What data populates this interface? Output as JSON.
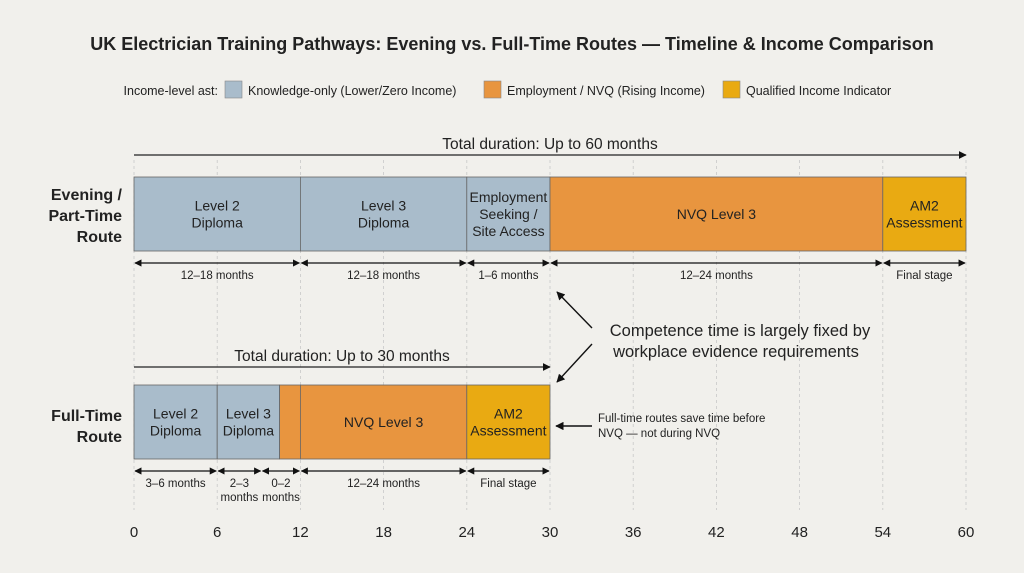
{
  "chart_data": {
    "type": "timeline",
    "title": "UK Electrician Training Pathways: Evening vs. Full-Time Routes — Timeline & Income Comparison",
    "xlabel": "",
    "xlim": [
      0,
      60
    ],
    "x_ticks": [
      "0",
      "6",
      "12",
      "18",
      "24",
      "30",
      "36",
      "42",
      "48",
      "54",
      "60"
    ],
    "grid": true,
    "legend": {
      "placement": "top",
      "title": "Income-level ast:",
      "items": [
        {
          "label": "Knowledge-only (Lower/Zero Income)",
          "color": "#a9bccb"
        },
        {
          "label": "Employment / NVQ (Rising Income)",
          "color": "#e8953f"
        },
        {
          "label": "Qualified Income Indicator",
          "color": "#e9aa12"
        }
      ]
    },
    "routes": [
      {
        "name_lines": [
          "Evening /",
          "Part-Time",
          "Route"
        ],
        "total_label": "Total duration: Up to 60 months",
        "total_months": 60,
        "segments": [
          {
            "label_lines": [
              "Level 2",
              "Diploma"
            ],
            "start": 0,
            "end": 12,
            "category": 0
          },
          {
            "label_lines": [
              "Level 3",
              "Diploma"
            ],
            "start": 12,
            "end": 24,
            "category": 0
          },
          {
            "label_lines": [
              "Employment",
              "Seeking /",
              "Site Access"
            ],
            "start": 24,
            "end": 30,
            "category": 0
          },
          {
            "label_lines": [
              "NVQ Level 3"
            ],
            "start": 30,
            "end": 54,
            "category": 1
          },
          {
            "label_lines": [
              "AM2",
              "Assessment"
            ],
            "start": 54,
            "end": 60,
            "category": 2
          }
        ],
        "durations": [
          {
            "label_lines": [
              "12–18 months"
            ],
            "start": 0,
            "end": 12
          },
          {
            "label_lines": [
              "12–18 months"
            ],
            "start": 12,
            "end": 24
          },
          {
            "label_lines": [
              "1–6 months"
            ],
            "start": 24,
            "end": 30
          },
          {
            "label_lines": [
              "12–24 months"
            ],
            "start": 30,
            "end": 54
          },
          {
            "label_lines": [
              "Final stage"
            ],
            "start": 54,
            "end": 60
          }
        ]
      },
      {
        "name_lines": [
          "Full-Time",
          "Route"
        ],
        "total_label": "Total duration: Up to 30 months",
        "total_months": 30,
        "segments": [
          {
            "label_lines": [
              "Level 2",
              "Diploma"
            ],
            "start": 0,
            "end": 6,
            "category": 0
          },
          {
            "label_lines": [
              "Level 3",
              "Diploma"
            ],
            "start": 6,
            "end": 10.5,
            "category": 0
          },
          {
            "label_lines": [],
            "start": 10.5,
            "end": 12,
            "category": 1
          },
          {
            "label_lines": [
              "NVQ Level 3"
            ],
            "start": 12,
            "end": 24,
            "category": 1
          },
          {
            "label_lines": [
              "AM2",
              "Assessment"
            ],
            "start": 24,
            "end": 30,
            "category": 2
          }
        ],
        "durations": [
          {
            "label_lines": [
              "3–6 months"
            ],
            "start": 0,
            "end": 6
          },
          {
            "label_lines": [
              "2–3",
              "months"
            ],
            "start": 6,
            "end": 9.2
          },
          {
            "label_lines": [
              "0–2",
              "months"
            ],
            "start": 9.2,
            "end": 12
          },
          {
            "label_lines": [
              "12–24 months"
            ],
            "start": 12,
            "end": 24
          },
          {
            "label_lines": [
              "Final stage"
            ],
            "start": 24,
            "end": 30
          }
        ]
      }
    ],
    "annotations": {
      "competence": [
        "Competence time is largely fixed by",
        "workplace evidence requirements"
      ],
      "fulltime_note": [
        "Full-time routes save time before",
        "NVQ — not during NVQ"
      ]
    }
  }
}
